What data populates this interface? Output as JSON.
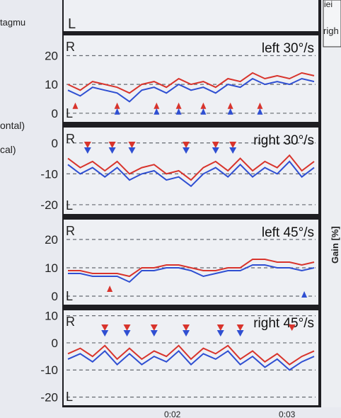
{
  "left_labels": {
    "nystagmus_cut": "tagmu",
    "horizontal_cut": "ontal)",
    "vertical_cut": "cal)"
  },
  "right_labels": {
    "legend_top_cut": "iei",
    "legend_right_cut": "righ",
    "gain_axis": "Gain [%]"
  },
  "x_ticks": [
    "0:02",
    "0:03"
  ],
  "colors": {
    "red_trace": "#d8342c",
    "blue_trace": "#2f4fd2",
    "frame": "#1a1a1a",
    "background_panel": "#eef0f4",
    "grid": "#666a70"
  },
  "chart_data": [
    {
      "type": "line",
      "title": "left 30°/s",
      "ylim": [
        -3,
        27
      ],
      "yticks": [
        "20",
        "10",
        "0"
      ],
      "direction_labels": {
        "top": "R",
        "bottom": "L"
      },
      "x": [
        0,
        5,
        10,
        15,
        20,
        25,
        30,
        35,
        40,
        45,
        50,
        55,
        60,
        65,
        70,
        75,
        80,
        85,
        90,
        95,
        100
      ],
      "series": [
        {
          "color": "red",
          "values": [
            10,
            8,
            11,
            10,
            9,
            7,
            10,
            11,
            9,
            12,
            10,
            11,
            9,
            12,
            11,
            14,
            12,
            13,
            12,
            14,
            13
          ]
        },
        {
          "color": "blue",
          "values": [
            8,
            6,
            9,
            8,
            7,
            4,
            8,
            9,
            7,
            10,
            8,
            9,
            7,
            10,
            9,
            12,
            10,
            11,
            10,
            12,
            11
          ]
        }
      ],
      "markers": {
        "red_up_x": [
          3,
          20,
          36,
          45,
          55,
          66,
          78
        ],
        "blue_up_x": [
          20,
          36,
          45,
          55,
          66,
          78
        ]
      }
    },
    {
      "type": "line",
      "title": "right 30°/s",
      "ylim": [
        -23,
        5
      ],
      "yticks": [
        "0",
        "-10",
        "-20"
      ],
      "direction_labels": {
        "top": "R",
        "bottom": "L"
      },
      "x": [
        0,
        5,
        10,
        15,
        20,
        25,
        30,
        35,
        40,
        45,
        50,
        55,
        60,
        65,
        70,
        75,
        80,
        85,
        90,
        95,
        100
      ],
      "series": [
        {
          "color": "red",
          "values": [
            -5,
            -8,
            -6,
            -9,
            -6,
            -10,
            -8,
            -7,
            -10,
            -9,
            -12,
            -8,
            -6,
            -9,
            -5,
            -9,
            -6,
            -8,
            -4,
            -9,
            -6
          ]
        },
        {
          "color": "blue",
          "values": [
            -7,
            -10,
            -8,
            -11,
            -8,
            -12,
            -10,
            -9,
            -12,
            -11,
            -14,
            -10,
            -8,
            -11,
            -7,
            -11,
            -8,
            -10,
            -6,
            -11,
            -8
          ]
        }
      ],
      "markers": {
        "red_down_x": [
          8,
          18,
          26,
          48,
          60,
          67
        ],
        "blue_down_x": [
          8,
          18,
          26,
          48,
          60,
          67
        ]
      }
    },
    {
      "type": "line",
      "title": "left 45°/s",
      "ylim": [
        -3,
        27
      ],
      "yticks": [
        "20",
        "10",
        "0"
      ],
      "direction_labels": {
        "top": "R",
        "bottom": "L"
      },
      "x": [
        0,
        5,
        10,
        15,
        20,
        25,
        30,
        35,
        40,
        45,
        50,
        55,
        60,
        65,
        70,
        75,
        80,
        85,
        90,
        95,
        100
      ],
      "series": [
        {
          "color": "red",
          "values": [
            9,
            9,
            8,
            8,
            8,
            7,
            10,
            10,
            11,
            11,
            10,
            9,
            9,
            10,
            10,
            13,
            13,
            12,
            12,
            11,
            12
          ]
        },
        {
          "color": "blue",
          "values": [
            8,
            8,
            7,
            7,
            7,
            5,
            9,
            9,
            10,
            10,
            9,
            7,
            8,
            9,
            9,
            11,
            11,
            10,
            10,
            9,
            10
          ]
        }
      ],
      "markers": {
        "red_up_x": [
          17
        ],
        "blue_up_x": [
          96
        ]
      }
    },
    {
      "type": "line",
      "title": "right 45°/s",
      "ylim": [
        -23,
        12
      ],
      "yticks": [
        "10",
        "0",
        "-10",
        "-20"
      ],
      "direction_labels": {
        "top": "R",
        "bottom": "L"
      },
      "x": [
        0,
        5,
        10,
        15,
        20,
        25,
        30,
        35,
        40,
        45,
        50,
        55,
        60,
        65,
        70,
        75,
        80,
        85,
        90,
        95,
        100
      ],
      "series": [
        {
          "color": "red",
          "values": [
            -4,
            -2,
            -5,
            -1,
            -6,
            -2,
            -6,
            -3,
            -5,
            -1,
            -6,
            -2,
            -4,
            -1,
            -6,
            -3,
            -7,
            -4,
            -8,
            -5,
            -3
          ]
        },
        {
          "color": "blue",
          "values": [
            -6,
            -4,
            -7,
            -3,
            -8,
            -4,
            -8,
            -5,
            -7,
            -3,
            -8,
            -4,
            -6,
            -3,
            -8,
            -5,
            -9,
            -6,
            -10,
            -7,
            -5
          ]
        }
      ],
      "markers": {
        "red_down_x": [
          15,
          24,
          35,
          48,
          62,
          70,
          91
        ],
        "blue_down_x": [
          15,
          24,
          35,
          48,
          62,
          70
        ]
      }
    }
  ]
}
